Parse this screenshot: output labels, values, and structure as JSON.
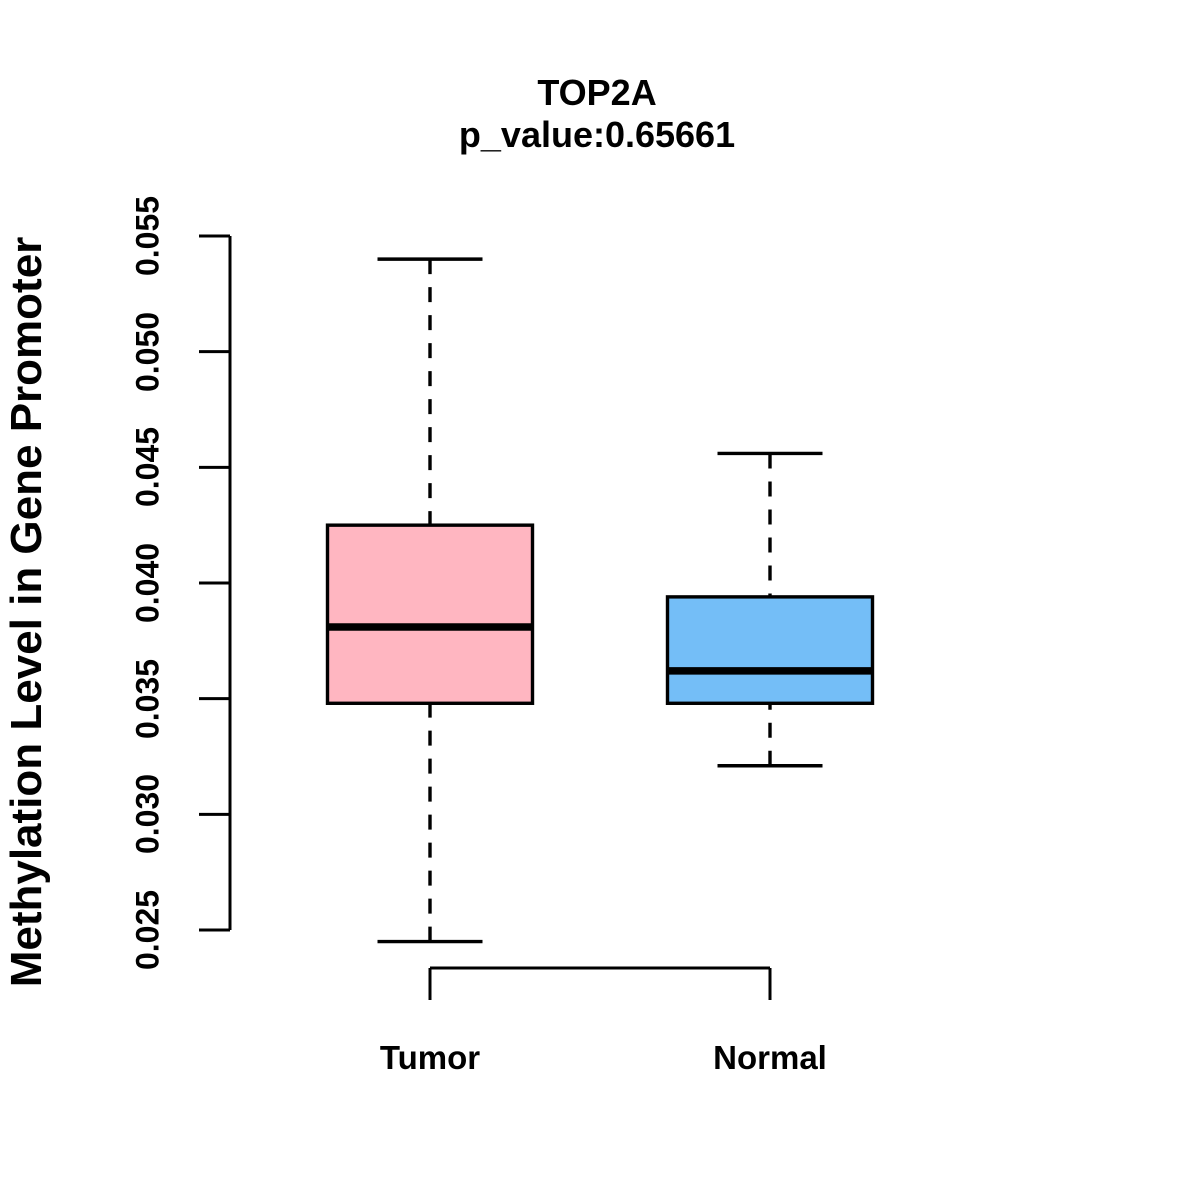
{
  "chart_data": {
    "type": "boxplot",
    "title": "TOP2A",
    "subtitle": "p_value:0.65661",
    "ylabel": "Methylation Level in Gene Promoter",
    "xlabel": "",
    "ylim": [
      0.0245,
      0.0545
    ],
    "yticks": [
      "0.025",
      "0.030",
      "0.035",
      "0.040",
      "0.045",
      "0.050",
      "0.055"
    ],
    "grid": "off",
    "legend": "none",
    "groups": [
      {
        "label": "Tumor",
        "fill_color": "#FFB6C1",
        "min": 0.0245,
        "q1": 0.0348,
        "median": 0.0381,
        "q3": 0.0425,
        "max": 0.054
      },
      {
        "label": "Normal",
        "fill_color": "#74BEF7",
        "min": 0.0321,
        "q1": 0.0348,
        "median": 0.0362,
        "q3": 0.0394,
        "max": 0.0456
      }
    ],
    "colors": {
      "stroke": "#000000",
      "background": "#FFFFFF",
      "text": "#000000"
    }
  }
}
